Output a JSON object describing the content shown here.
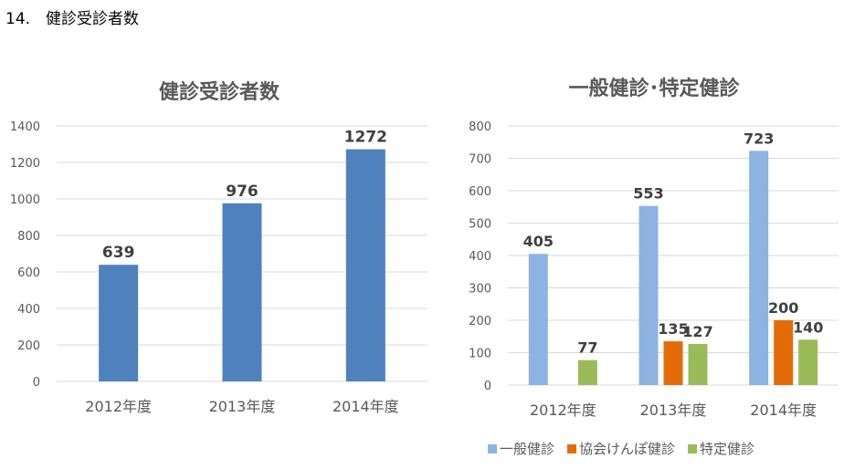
{
  "page_heading": "14.　健診受診者数",
  "chart_data": [
    {
      "type": "bar",
      "title": "健診受診者数",
      "categories": [
        "2012年度",
        "2013年度",
        "2014年度"
      ],
      "values": [
        639,
        976,
        1272
      ],
      "ylim": [
        0,
        1400
      ],
      "yticks": [
        0,
        200,
        400,
        600,
        800,
        1000,
        1200,
        1400
      ],
      "grid": true,
      "color": "#4f81bd",
      "xlabel": "",
      "ylabel": ""
    },
    {
      "type": "bar",
      "title": "一般健診･特定健診",
      "categories": [
        "2012年度",
        "2013年度",
        "2014年度"
      ],
      "series": [
        {
          "name": "一般健診",
          "values": [
            405,
            553,
            723
          ],
          "color": "#8db3e2"
        },
        {
          "name": "協会けんぽ健診",
          "values": [
            null,
            135,
            200
          ],
          "color": "#e36c09"
        },
        {
          "name": "特定健診",
          "values": [
            77,
            127,
            140
          ],
          "color": "#9bbb59"
        }
      ],
      "ylim": [
        0,
        800
      ],
      "yticks": [
        0,
        100,
        200,
        300,
        400,
        500,
        600,
        700,
        800
      ],
      "grid": true,
      "legend": "bottom",
      "xlabel": "",
      "ylabel": ""
    }
  ]
}
